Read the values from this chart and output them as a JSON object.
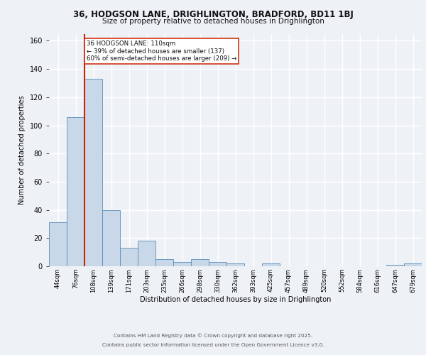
{
  "title1": "36, HODGSON LANE, DRIGHLINGTON, BRADFORD, BD11 1BJ",
  "title2": "Size of property relative to detached houses in Drighlington",
  "xlabel": "Distribution of detached houses by size in Drighlington",
  "ylabel": "Number of detached properties",
  "categories": [
    "44sqm",
    "76sqm",
    "108sqm",
    "139sqm",
    "171sqm",
    "203sqm",
    "235sqm",
    "266sqm",
    "298sqm",
    "330sqm",
    "362sqm",
    "393sqm",
    "425sqm",
    "457sqm",
    "489sqm",
    "520sqm",
    "552sqm",
    "584sqm",
    "616sqm",
    "647sqm",
    "679sqm"
  ],
  "values": [
    31,
    106,
    133,
    40,
    13,
    18,
    5,
    3,
    5,
    3,
    2,
    0,
    2,
    0,
    0,
    0,
    0,
    0,
    0,
    1,
    2
  ],
  "bar_color": "#c8d8e8",
  "bar_edge_color": "#5b8db8",
  "vline_color": "#cc2200",
  "annotation_text": "36 HODGSON LANE: 110sqm\n← 39% of detached houses are smaller (137)\n60% of semi-detached houses are larger (209) →",
  "ylim": [
    0,
    165
  ],
  "yticks": [
    0,
    20,
    40,
    60,
    80,
    100,
    120,
    140,
    160
  ],
  "footer1": "Contains HM Land Registry data © Crown copyright and database right 2025.",
  "footer2": "Contains public sector information licensed under the Open Government Licence v3.0.",
  "bg_color": "#eef2f7",
  "grid_color": "#ffffff"
}
